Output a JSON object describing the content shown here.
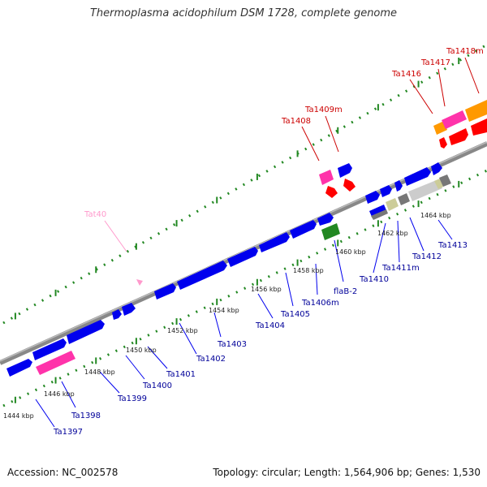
{
  "header": {
    "title": "Thermoplasma acidophilum DSM 1728, complete genome"
  },
  "footer": {
    "accession": "Accession: NC_002578",
    "summary": "Topology: circular; Length: 1,564,906 bp; Genes: 1,530"
  },
  "colors": {
    "forward_gene_label": "#000099",
    "reverse_gene_label": "#cc0000",
    "rna_label": "#ff99cc",
    "backbone": "#888888",
    "tick": "#228822",
    "blue_feature": "#0000ee",
    "red_feature": "#ff0000",
    "pink_feature": "#ff33aa",
    "orange_feature": "#ff9900",
    "green_feature": "#228822",
    "gray_feature": "#777777",
    "silver_feature": "#cccccc",
    "khaki_feature": "#cccc99"
  },
  "kbp_ticks": [
    "1444 kbp",
    "1446 kbp",
    "1448 kbp",
    "1450 kbp",
    "1452 kbp",
    "1454 kbp",
    "1456 kbp",
    "1458 kbp",
    "1460 kbp",
    "1462 kbp",
    "1464 kbp"
  ],
  "genes_below": [
    "Ta1397",
    "Ta1398",
    "Ta1399",
    "Ta1400",
    "Ta1401",
    "Ta1402",
    "Ta1403",
    "Ta1404",
    "Ta1405",
    "Ta1406m",
    "flaB-2",
    "Ta1410",
    "Ta1411m",
    "Ta1412",
    "Ta1413"
  ],
  "genes_above": [
    "Ta1408",
    "Ta1409m",
    "Ta1416",
    "Ta1417",
    "Ta1418m"
  ],
  "rna_labels": [
    "Tat40"
  ]
}
